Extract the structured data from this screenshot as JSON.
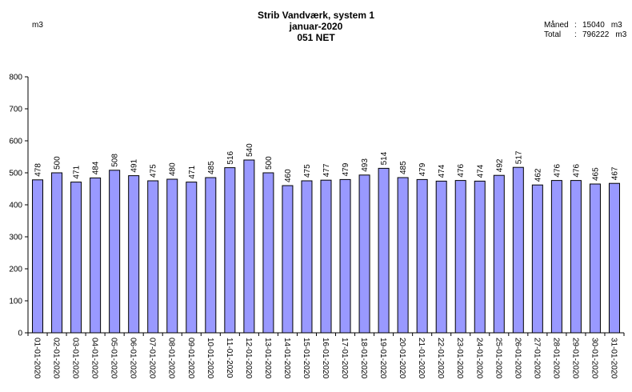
{
  "header": {
    "title_line1": "Strib Vandværk, system 1",
    "title_line2": "januar-2020",
    "title_line3": "051 NET",
    "y_unit": "m3"
  },
  "summary": {
    "month_label": "Måned",
    "month_value": "15040",
    "month_unit": "m3",
    "total_label": "Total",
    "total_value": "796222",
    "total_unit": "m3"
  },
  "colors": {
    "bar_fill": "#9999ff",
    "bar_stroke": "#000000"
  },
  "chart_data": {
    "type": "bar",
    "title": "Strib Vandværk, system 1",
    "ylabel": "m3",
    "ylim": [
      0,
      800
    ],
    "yticks": [
      0,
      100,
      200,
      300,
      400,
      500,
      600,
      700,
      800
    ],
    "grid": false,
    "categories": [
      "01-01-2020",
      "02-01-2020",
      "03-01-2020",
      "04-01-2020",
      "05-01-2020",
      "06-01-2020",
      "07-01-2020",
      "08-01-2020",
      "09-01-2020",
      "10-01-2020",
      "11-01-2020",
      "12-01-2020",
      "13-01-2020",
      "14-01-2020",
      "15-01-2020",
      "16-01-2020",
      "17-01-2020",
      "18-01-2020",
      "19-01-2020",
      "20-01-2020",
      "21-01-2020",
      "22-01-2020",
      "23-01-2020",
      "24-01-2020",
      "25-01-2020",
      "26-01-2020",
      "27-01-2020",
      "28-01-2020",
      "29-01-2020",
      "30-01-2020",
      "31-01-2020"
    ],
    "values": [
      478,
      500,
      471,
      484,
      508,
      491,
      475,
      480,
      471,
      485,
      516,
      540,
      500,
      460,
      475,
      477,
      479,
      493,
      514,
      485,
      479,
      474,
      476,
      474,
      492,
      517,
      462,
      476,
      476,
      465,
      467
    ]
  }
}
